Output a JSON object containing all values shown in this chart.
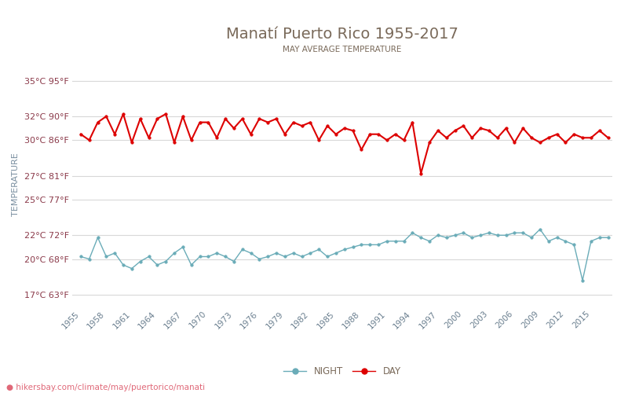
{
  "title": "Manatí Puerto Rico 1955-2017",
  "subtitle": "MAY AVERAGE TEMPERATURE",
  "ylabel": "TEMPERATURE",
  "watermark": "hikersbay.com/climate/may/puertorico/manati",
  "title_color": "#7a6a5a",
  "subtitle_color": "#7a6a5a",
  "ylabel_color": "#7a8fa0",
  "ytick_color": "#8b3a4a",
  "xtick_color": "#6a7f8f",
  "background_color": "#ffffff",
  "grid_color": "#d8d8d8",
  "day_color": "#dd0000",
  "night_color": "#6aacb8",
  "years": [
    1955,
    1956,
    1957,
    1958,
    1959,
    1960,
    1961,
    1962,
    1963,
    1964,
    1965,
    1966,
    1967,
    1968,
    1969,
    1970,
    1971,
    1972,
    1973,
    1974,
    1975,
    1976,
    1977,
    1978,
    1979,
    1980,
    1981,
    1982,
    1983,
    1984,
    1985,
    1986,
    1987,
    1988,
    1989,
    1990,
    1991,
    1992,
    1993,
    1994,
    1995,
    1996,
    1997,
    1998,
    1999,
    2000,
    2001,
    2002,
    2003,
    2004,
    2005,
    2006,
    2007,
    2008,
    2009,
    2010,
    2011,
    2012,
    2013,
    2014,
    2015,
    2016,
    2017
  ],
  "day_temps": [
    30.5,
    30.0,
    31.5,
    32.0,
    30.5,
    32.2,
    29.8,
    31.8,
    30.2,
    31.8,
    32.2,
    29.8,
    32.0,
    30.0,
    31.5,
    31.5,
    30.2,
    31.8,
    31.0,
    31.8,
    30.5,
    31.8,
    31.5,
    31.8,
    30.5,
    31.5,
    31.2,
    31.5,
    30.0,
    31.2,
    30.5,
    31.0,
    30.8,
    29.2,
    30.5,
    30.5,
    30.0,
    30.5,
    30.0,
    31.5,
    27.2,
    29.8,
    30.8,
    30.2,
    30.8,
    31.2,
    30.2,
    31.0,
    30.8,
    30.2,
    31.0,
    29.8,
    31.0,
    30.2,
    29.8,
    30.2,
    30.5,
    29.8,
    30.5,
    30.2,
    30.2,
    30.8,
    30.2
  ],
  "night_temps": [
    20.2,
    20.0,
    21.8,
    20.2,
    20.5,
    19.5,
    19.2,
    19.8,
    20.2,
    19.5,
    19.8,
    20.5,
    21.0,
    19.5,
    20.2,
    20.2,
    20.5,
    20.2,
    19.8,
    20.8,
    20.5,
    20.0,
    20.2,
    20.5,
    20.2,
    20.5,
    20.2,
    20.5,
    20.8,
    20.2,
    20.5,
    20.8,
    21.0,
    21.2,
    21.2,
    21.2,
    21.5,
    21.5,
    21.5,
    22.2,
    21.8,
    21.5,
    22.0,
    21.8,
    22.0,
    22.2,
    21.8,
    22.0,
    22.2,
    22.0,
    22.0,
    22.2,
    22.2,
    21.8,
    22.5,
    21.5,
    21.8,
    21.5,
    21.2,
    18.2,
    21.5,
    21.8,
    21.8
  ],
  "yticks_c": [
    17,
    20,
    22,
    25,
    27,
    30,
    32,
    35
  ],
  "yticks_f": [
    63,
    68,
    72,
    77,
    81,
    86,
    90,
    95
  ],
  "ylim": [
    16.0,
    36.5
  ],
  "xlim": [
    1954.0,
    2017.5
  ],
  "xtick_years": [
    1955,
    1958,
    1961,
    1964,
    1967,
    1970,
    1973,
    1976,
    1979,
    1982,
    1985,
    1988,
    1991,
    1994,
    1997,
    2000,
    2003,
    2006,
    2009,
    2012,
    2015
  ]
}
